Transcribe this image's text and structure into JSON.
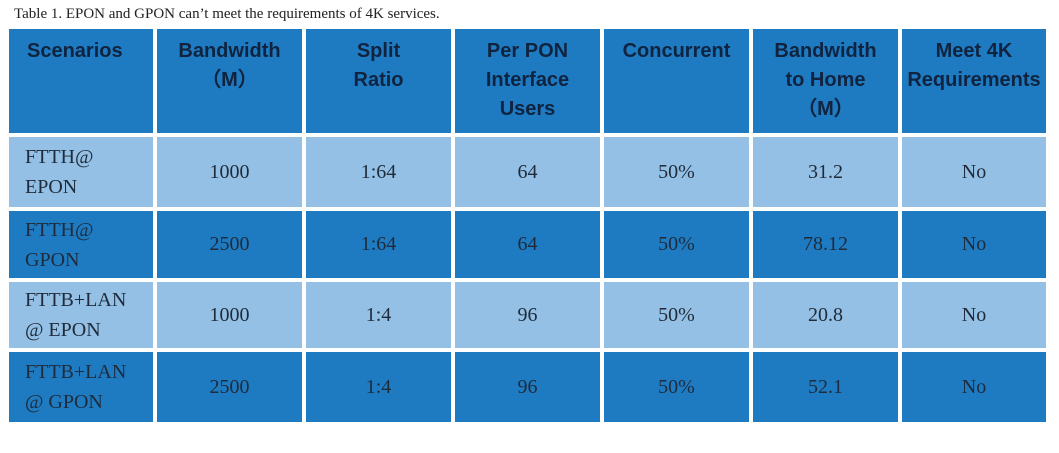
{
  "caption": "Table 1. EPON and GPON can’t meet the requirements of 4K services.",
  "colors": {
    "dark": "#1e7bc2",
    "light": "#93c0e4"
  },
  "headers": [
    "Scenarios",
    "Bandwidth\n（M）",
    "Split\nRatio",
    "Per PON\nInterface\nUsers",
    "Concurrent",
    "Bandwidth\nto Home\n（M）",
    "Meet 4K\nRequirements"
  ],
  "rows": [
    [
      "FTTH@\nEPON",
      "1000",
      "1:64",
      "64",
      "50%",
      "31.2",
      "No"
    ],
    [
      "FTTH@\nGPON",
      "2500",
      "1:64",
      "64",
      "50%",
      "78.12",
      "No"
    ],
    [
      "FTTB+LAN\n@ EPON",
      "1000",
      "1:4",
      "96",
      "50%",
      "20.8",
      "No"
    ],
    [
      "FTTB+LAN\n@ GPON",
      "2500",
      "1:4",
      "96",
      "50%",
      "52.1",
      "No"
    ]
  ]
}
